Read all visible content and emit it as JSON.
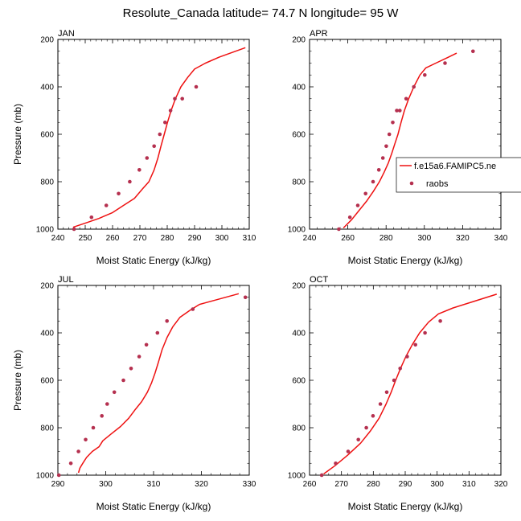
{
  "title": "Resolute_Canada  latitude= 74.7 N longitude= 95 W",
  "colors": {
    "model_line": "#ee1111",
    "raobs_marker": "#b5304f"
  },
  "legend": {
    "model_label": "f.e15a6.FAMIPC5.ne",
    "obs_label": "raobs"
  },
  "chart_data": [
    {
      "type": "line",
      "panel_title": "JAN",
      "xlabel": "Moist Static Energy (kJ/kg)",
      "ylabel": "Pressure (mb)",
      "xlim": [
        240,
        310
      ],
      "ylim": [
        1000,
        200
      ],
      "xticks": [
        240,
        250,
        260,
        270,
        280,
        290,
        300,
        310
      ],
      "yticks": [
        200,
        400,
        600,
        800,
        1000
      ],
      "series": [
        {
          "name": "f.e15a6.FAMIPC5.ne",
          "style": "line",
          "x": [
            245.6,
            250,
            255,
            260,
            264,
            268,
            271,
            273.3,
            275.2,
            276.6,
            277.7,
            278.9,
            280.1,
            281.4,
            283,
            285,
            287.5,
            290,
            294,
            299,
            308.6
          ],
          "y": [
            992,
            975,
            955,
            930,
            900,
            870,
            830,
            800,
            750,
            700,
            650,
            600,
            550,
            500,
            450,
            400,
            360,
            325,
            300,
            275,
            235
          ]
        },
        {
          "name": "raobs",
          "style": "markers",
          "x": [
            245.9,
            252.3,
            257.7,
            262.2,
            266.3,
            269.8,
            272.6,
            275.2,
            277.3,
            279.2,
            281.2,
            282.8,
            285.5,
            290.6
          ],
          "y": [
            1000,
            950,
            900,
            850,
            800,
            750,
            700,
            650,
            600,
            550,
            500,
            450,
            450,
            400
          ]
        }
      ]
    },
    {
      "type": "line",
      "panel_title": "APR",
      "xlabel": "Moist Static Energy (kJ/kg)",
      "ylabel": "",
      "xlim": [
        240,
        340
      ],
      "ylim": [
        1000,
        200
      ],
      "xticks": [
        240,
        260,
        280,
        300,
        320,
        340
      ],
      "yticks": [
        200,
        400,
        600,
        800,
        1000
      ],
      "series": [
        {
          "name": "f.e15a6.FAMIPC5.ne",
          "style": "line",
          "x": [
            257.7,
            262,
            266,
            270,
            273.4,
            276.5,
            279,
            281.2,
            283,
            284.6,
            286.2,
            287.8,
            289.6,
            291.8,
            294.5,
            297.7,
            300.8,
            306,
            312.6,
            316.9
          ],
          "y": [
            995,
            960,
            920,
            880,
            840,
            800,
            760,
            720,
            680,
            640,
            600,
            550,
            500,
            450,
            400,
            350,
            320,
            300,
            275,
            258
          ]
        },
        {
          "name": "raobs",
          "style": "markers",
          "x": [
            255.3,
            261.1,
            265.2,
            269.3,
            273.2,
            276.2,
            278.3,
            280.1,
            281.7,
            283.5,
            285.6,
            287.2,
            290.5,
            294.5,
            300.2,
            310.8,
            325.4
          ],
          "y": [
            1000,
            950,
            900,
            850,
            800,
            750,
            700,
            650,
            600,
            550,
            500,
            500,
            450,
            400,
            350,
            300,
            250
          ]
        }
      ]
    },
    {
      "type": "line",
      "panel_title": "JUL",
      "xlabel": "Moist Static Energy (kJ/kg)",
      "ylabel": "Pressure (mb)",
      "xlim": [
        290,
        330
      ],
      "ylim": [
        1000,
        200
      ],
      "xticks": [
        290,
        300,
        310,
        320,
        330
      ],
      "yticks": [
        200,
        400,
        600,
        800,
        1000
      ],
      "series": [
        {
          "name": "f.e15a6.FAMIPC5.ne",
          "style": "line",
          "x": [
            294.3,
            294.6,
            295.2,
            296,
            297.2,
            298.6,
            299.4,
            301.2,
            303.1,
            304.8,
            306.1,
            307.5,
            308.7,
            309.6,
            310.3,
            311,
            311.8,
            312.8,
            314,
            315.5,
            317.6,
            319.6,
            327.8
          ],
          "y": [
            990,
            970,
            950,
            925,
            900,
            880,
            855,
            825,
            795,
            760,
            725,
            690,
            650,
            610,
            570,
            525,
            470,
            420,
            375,
            335,
            305,
            280,
            235
          ]
        },
        {
          "name": "raobs",
          "style": "markers",
          "x": [
            290.2,
            292.7,
            294.3,
            295.8,
            297.4,
            299.2,
            300.3,
            301.8,
            303.7,
            305.3,
            307,
            308.5,
            310.8,
            312.8,
            318.2,
            329.2
          ],
          "y": [
            1000,
            950,
            900,
            850,
            800,
            750,
            700,
            650,
            600,
            550,
            500,
            450,
            400,
            350,
            300,
            250
          ]
        }
      ]
    },
    {
      "type": "line",
      "panel_title": "OCT",
      "xlabel": "Moist Static Energy (kJ/kg)",
      "ylabel": "",
      "xlim": [
        260,
        320
      ],
      "ylim": [
        1000,
        200
      ],
      "xticks": [
        260,
        270,
        280,
        290,
        300,
        310,
        320
      ],
      "yticks": [
        200,
        400,
        600,
        800,
        1000
      ],
      "series": [
        {
          "name": "f.e15a6.FAMIPC5.ne",
          "style": "line",
          "x": [
            264.4,
            268,
            272,
            276,
            279,
            281.8,
            284,
            285.6,
            287,
            288.5,
            290.2,
            292.2,
            294.5,
            297.3,
            300.4,
            305,
            311.3,
            318.7
          ],
          "y": [
            995,
            960,
            915,
            865,
            815,
            760,
            700,
            650,
            600,
            550,
            500,
            450,
            400,
            355,
            320,
            295,
            268,
            237
          ]
        },
        {
          "name": "raobs",
          "style": "markers",
          "x": [
            263.8,
            268.2,
            272.1,
            275.3,
            277.8,
            279.9,
            282.2,
            284.2,
            286.5,
            288.4,
            290.6,
            293.2,
            296.2,
            301
          ],
          "y": [
            1000,
            950,
            900,
            850,
            800,
            750,
            700,
            650,
            600,
            550,
            500,
            450,
            400,
            350
          ]
        }
      ]
    }
  ]
}
